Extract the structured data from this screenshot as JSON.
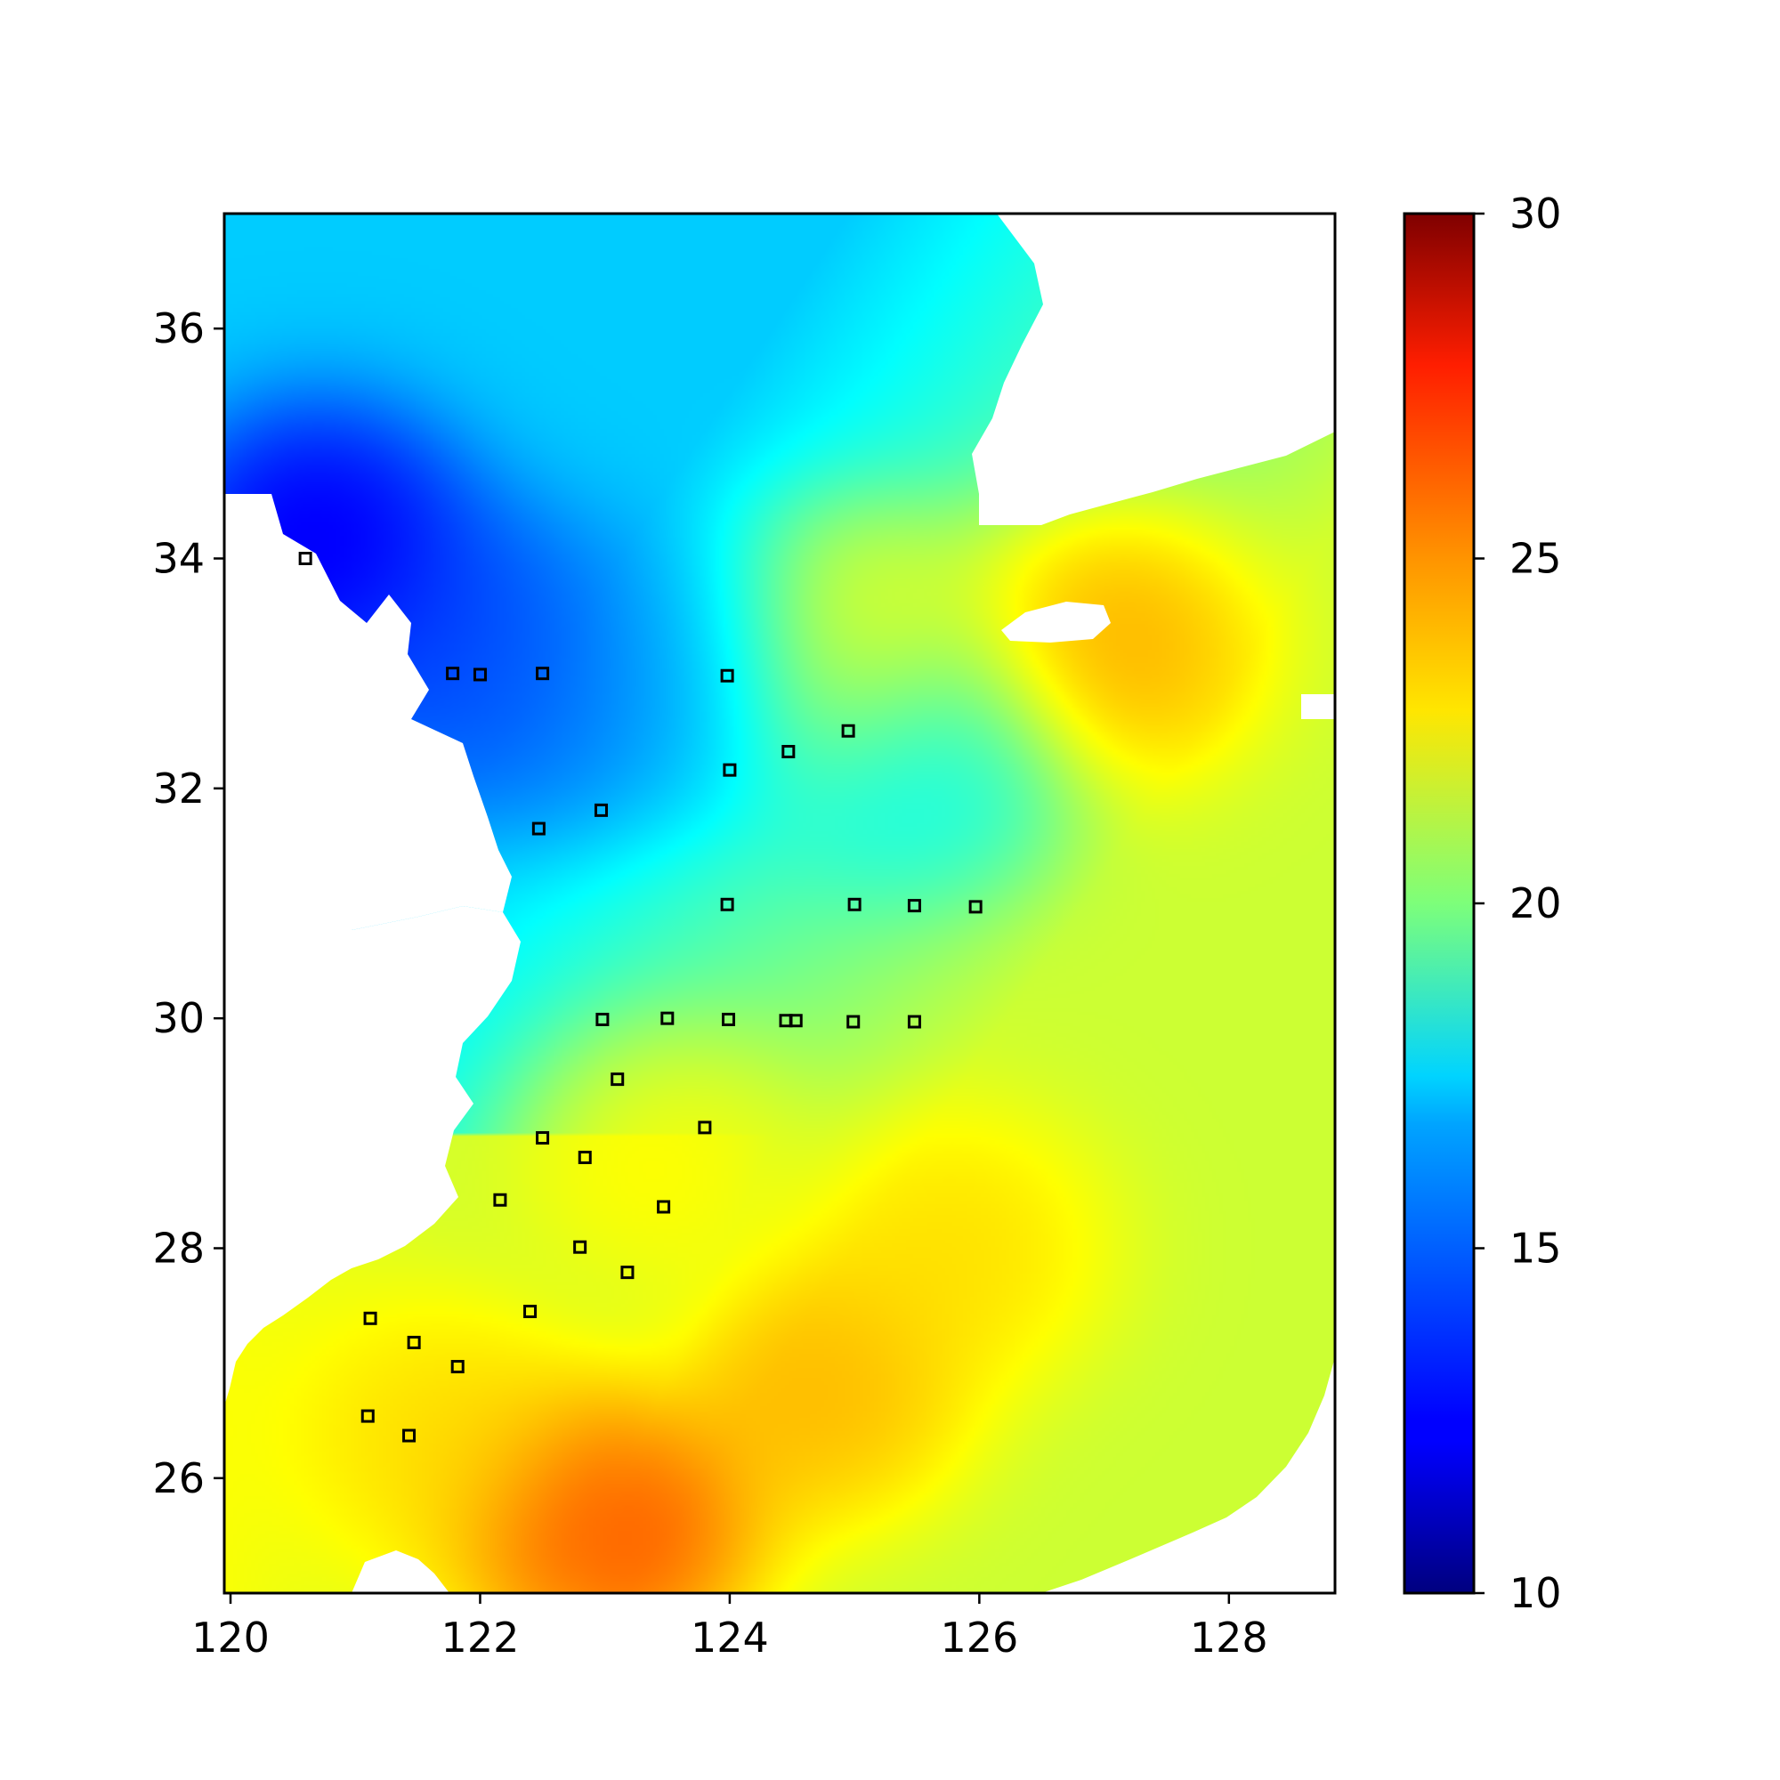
{
  "chart_data": {
    "type": "heatmap",
    "title": "",
    "xlabel": "",
    "ylabel": "",
    "xlim": [
      119.95,
      128.85
    ],
    "ylim": [
      25.0,
      37.0
    ],
    "x_ticks": [
      120,
      122,
      124,
      126,
      128
    ],
    "y_ticks": [
      26,
      28,
      30,
      32,
      34,
      36
    ],
    "colorbar": {
      "colormap": "jet",
      "vmin": 10,
      "vmax": 30,
      "ticks": [
        10,
        15,
        20,
        25,
        30
      ]
    },
    "field_hotspots": [
      {
        "lon": 120.7,
        "lat": 34.1,
        "value": 11.0
      },
      {
        "lon": 121.8,
        "lat": 33.2,
        "value": 13.0
      },
      {
        "lon": 122.5,
        "lat": 32.8,
        "value": 14.5
      },
      {
        "lon": 123.7,
        "lat": 33.0,
        "value": 15.5
      },
      {
        "lon": 125.5,
        "lat": 32.3,
        "value": 17.0
      },
      {
        "lon": 127.0,
        "lat": 33.3,
        "value": 25.0
      },
      {
        "lon": 125.0,
        "lat": 33.2,
        "value": 23.5
      },
      {
        "lon": 123.0,
        "lat": 25.6,
        "value": 27.0
      },
      {
        "lon": 124.7,
        "lat": 26.8,
        "value": 24.5
      },
      {
        "lon": 125.8,
        "lat": 28.0,
        "value": 23.5
      },
      {
        "lon": 123.5,
        "lat": 28.7,
        "value": 23.0
      },
      {
        "lon": 121.8,
        "lat": 26.4,
        "value": 23.5
      }
    ],
    "stations": [
      {
        "lon": 120.6,
        "lat": 34.0
      },
      {
        "lon": 121.78,
        "lat": 33.0
      },
      {
        "lon": 122.0,
        "lat": 32.99
      },
      {
        "lon": 122.5,
        "lat": 33.0
      },
      {
        "lon": 123.98,
        "lat": 32.98
      },
      {
        "lon": 124.95,
        "lat": 32.5
      },
      {
        "lon": 124.47,
        "lat": 32.32
      },
      {
        "lon": 124.0,
        "lat": 32.16
      },
      {
        "lon": 122.97,
        "lat": 31.81
      },
      {
        "lon": 122.47,
        "lat": 31.65
      },
      {
        "lon": 123.98,
        "lat": 30.99
      },
      {
        "lon": 125.0,
        "lat": 30.99
      },
      {
        "lon": 125.48,
        "lat": 30.98
      },
      {
        "lon": 125.97,
        "lat": 30.97
      },
      {
        "lon": 122.98,
        "lat": 29.99
      },
      {
        "lon": 123.5,
        "lat": 30.0
      },
      {
        "lon": 123.99,
        "lat": 29.99
      },
      {
        "lon": 124.45,
        "lat": 29.98
      },
      {
        "lon": 124.53,
        "lat": 29.98
      },
      {
        "lon": 124.99,
        "lat": 29.97
      },
      {
        "lon": 125.48,
        "lat": 29.97
      },
      {
        "lon": 123.1,
        "lat": 29.47
      },
      {
        "lon": 123.8,
        "lat": 29.05
      },
      {
        "lon": 122.5,
        "lat": 28.96
      },
      {
        "lon": 122.84,
        "lat": 28.79
      },
      {
        "lon": 122.16,
        "lat": 28.42
      },
      {
        "lon": 123.47,
        "lat": 28.36
      },
      {
        "lon": 122.8,
        "lat": 28.01
      },
      {
        "lon": 123.18,
        "lat": 27.79
      },
      {
        "lon": 122.4,
        "lat": 27.45
      },
      {
        "lon": 121.12,
        "lat": 27.39
      },
      {
        "lon": 121.47,
        "lat": 27.18
      },
      {
        "lon": 121.82,
        "lat": 26.97
      },
      {
        "lon": 121.1,
        "lat": 26.54
      },
      {
        "lon": 121.43,
        "lat": 26.37
      }
    ]
  }
}
